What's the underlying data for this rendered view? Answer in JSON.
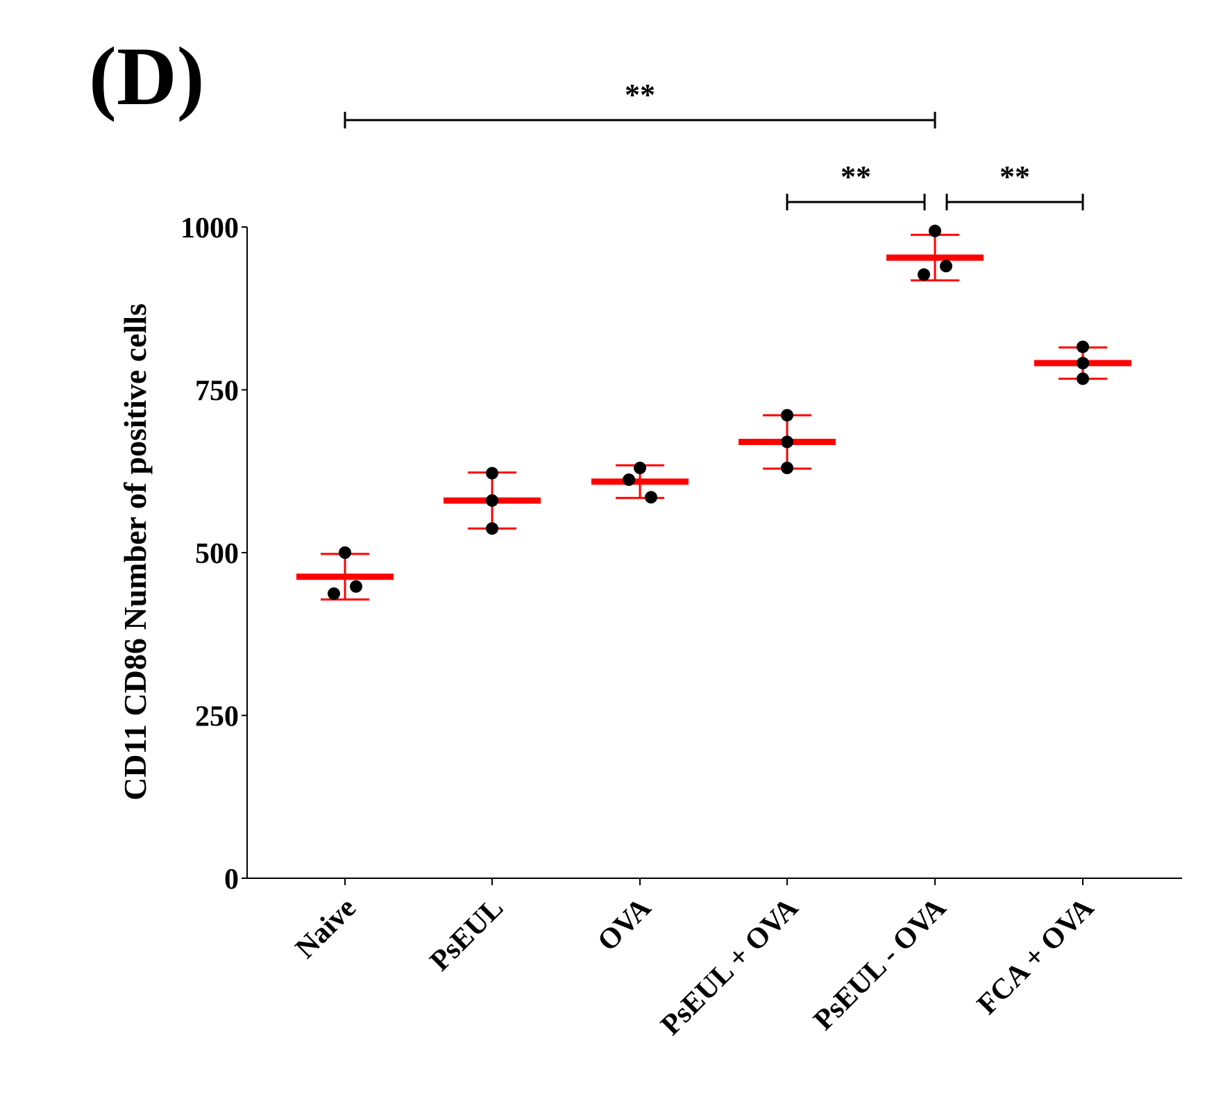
{
  "panel_label": "(D)",
  "colors": {
    "mean": "#ff0000",
    "errorbar": "#ff0000",
    "point": "#000000",
    "axis": "#000000",
    "bracket": "#000000"
  },
  "chart_data": {
    "type": "scatter",
    "title": "",
    "xlabel": "",
    "ylabel": "CD11 CD86 Number of positive cells",
    "ylim": [
      0,
      1000
    ],
    "yticks": [
      0,
      250,
      500,
      750,
      1000
    ],
    "ytick_labels": [
      "0",
      "250",
      "500",
      "750",
      "1000"
    ],
    "categories": [
      "Naive",
      "PsEUL",
      "OVA",
      "PsEUL + OVA",
      "PsEUL - OVA",
      "FCA + OVA"
    ],
    "groups": [
      {
        "name": "Naive",
        "mean": 463,
        "error": 35,
        "points": [
          500,
          437,
          448
        ]
      },
      {
        "name": "PsEUL",
        "mean": 580,
        "error": 43,
        "points": [
          622,
          580,
          537
        ]
      },
      {
        "name": "OVA",
        "mean": 609,
        "error": 25,
        "points": [
          630,
          612,
          585
        ]
      },
      {
        "name": "PsEUL + OVA",
        "mean": 670,
        "error": 41,
        "points": [
          711,
          670,
          630
        ]
      },
      {
        "name": "PsEUL - OVA",
        "mean": 953,
        "error": 35,
        "points": [
          994,
          927,
          940
        ]
      },
      {
        "name": "FCA + OVA",
        "mean": 791,
        "error": 24,
        "points": [
          816,
          791,
          767
        ]
      }
    ],
    "significance": [
      {
        "from": "Naive",
        "to": "PsEUL - OVA",
        "label": "**"
      },
      {
        "from": "PsEUL + OVA",
        "to": "PsEUL - OVA",
        "label": "**"
      },
      {
        "from": "PsEUL - OVA",
        "to": "FCA + OVA",
        "label": "**"
      }
    ]
  }
}
